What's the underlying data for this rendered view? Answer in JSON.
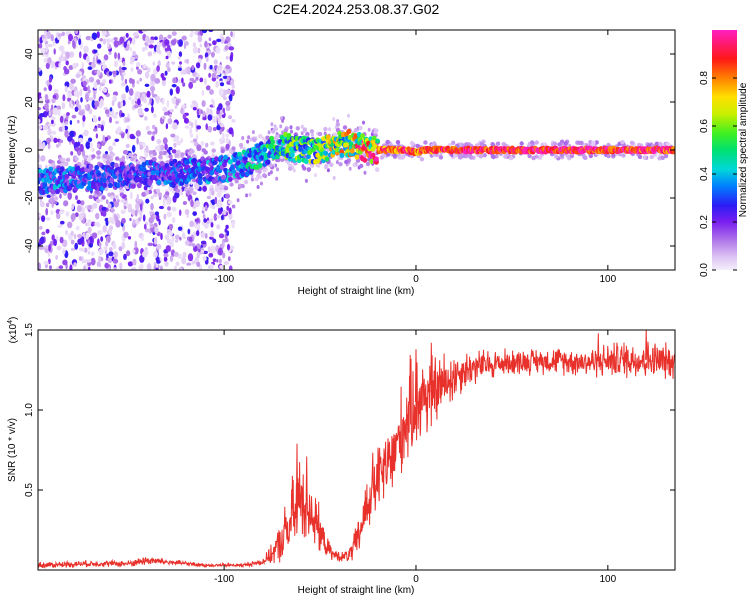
{
  "title": "C2E4.2024.253.08.37.G02",
  "colors": {
    "line": "#e8312b",
    "frame": "#000000",
    "background": "#ffffff"
  },
  "chart_data": [
    {
      "type": "heatmap",
      "title": "C2E4.2024.253.08.37.G02",
      "xlabel": "Height of straight line (km)",
      "ylabel": "Frequency (Hz)",
      "xlim": [
        -197,
        135
      ],
      "ylim": [
        -50,
        50
      ],
      "xticks": [
        -100,
        0,
        100
      ],
      "xticklabels": [
        "-100",
        "0",
        "100"
      ],
      "yticks": [
        -40,
        -20,
        0,
        20,
        40
      ],
      "yticklabels": [
        "-40",
        "-20",
        "0",
        "20",
        "40"
      ],
      "colorbar": {
        "label": "Normalized spectral amplitude",
        "range": [
          0,
          1
        ],
        "ticks": [
          0.0,
          0.2,
          0.4,
          0.6,
          0.8
        ],
        "ticklabels": [
          "0.0",
          "0.2",
          "0.4",
          "0.6",
          "0.8"
        ],
        "colormap": "rainbow (purple-blue-cyan-green-yellow-red-magenta)"
      },
      "ridge": {
        "description": "dominant frequency vs height",
        "x": [
          -197,
          -180,
          -160,
          -140,
          -120,
          -100,
          -90,
          -80,
          -70,
          -60,
          -50,
          -40,
          -34,
          -28,
          -22,
          -15,
          -5,
          0,
          5,
          15,
          40,
          80,
          100,
          120,
          135
        ],
        "freq": [
          -13,
          -12,
          -11,
          -10,
          -9,
          -8,
          -6,
          -2,
          2,
          0,
          0,
          2,
          3,
          1,
          0,
          0,
          0,
          -1,
          0,
          0,
          0,
          0,
          0,
          0,
          0
        ],
        "amplitude": [
          0.3,
          0.3,
          0.25,
          0.25,
          0.3,
          0.3,
          0.35,
          0.4,
          0.45,
          0.5,
          0.55,
          0.6,
          0.65,
          0.75,
          0.85,
          0.9,
          0.9,
          0.85,
          0.9,
          0.95,
          0.95,
          0.95,
          0.95,
          0.95,
          0.9
        ]
      },
      "scatter_extent_x": [
        -197,
        -95
      ]
    },
    {
      "type": "line",
      "xlabel": "Height of straight line (km)",
      "ylabel": "SNR (10 * v/v)",
      "ymultiplier": "(x10",
      "ymultiplier_exp": "4",
      "ymultiplier_close": ")",
      "xlim": [
        -197,
        135
      ],
      "ylim": [
        0,
        1.5
      ],
      "xticks": [
        -100,
        0,
        100
      ],
      "xticklabels": [
        "-100",
        "0",
        "100"
      ],
      "yticks": [
        0.5,
        1.0,
        1.5
      ],
      "yticklabels": [
        "0.5",
        "1.0",
        "1.5"
      ],
      "envelope": {
        "x": [
          -197,
          -170,
          -150,
          -140,
          -130,
          -110,
          -90,
          -80,
          -75,
          -70,
          -65,
          -60,
          -57,
          -53,
          -48,
          -44,
          -38,
          -34,
          -30,
          -27,
          -23,
          -18,
          -12,
          -8,
          -3,
          0,
          5,
          10,
          18,
          25,
          35,
          50,
          70,
          90,
          110,
          125,
          135
        ],
        "level": [
          0.03,
          0.04,
          0.04,
          0.06,
          0.05,
          0.03,
          0.03,
          0.05,
          0.1,
          0.18,
          0.3,
          0.45,
          0.45,
          0.32,
          0.18,
          0.1,
          0.08,
          0.1,
          0.2,
          0.35,
          0.5,
          0.6,
          0.7,
          0.85,
          1.0,
          1.05,
          1.1,
          1.12,
          1.2,
          1.25,
          1.28,
          1.3,
          1.31,
          1.3,
          1.32,
          1.31,
          1.3
        ],
        "noise": [
          0.02,
          0.02,
          0.02,
          0.03,
          0.02,
          0.01,
          0.01,
          0.02,
          0.06,
          0.14,
          0.25,
          0.3,
          0.28,
          0.2,
          0.08,
          0.04,
          0.03,
          0.06,
          0.12,
          0.18,
          0.22,
          0.22,
          0.25,
          0.28,
          0.3,
          0.28,
          0.3,
          0.22,
          0.18,
          0.12,
          0.1,
          0.08,
          0.08,
          0.09,
          0.12,
          0.12,
          0.1
        ]
      },
      "peaks": [
        {
          "x": -62,
          "y": 0.79
        },
        {
          "x": 8,
          "y": 1.42
        },
        {
          "x": 0,
          "y": 1.38
        },
        {
          "x": 95,
          "y": 1.48
        },
        {
          "x": 120,
          "y": 1.5
        }
      ]
    }
  ]
}
